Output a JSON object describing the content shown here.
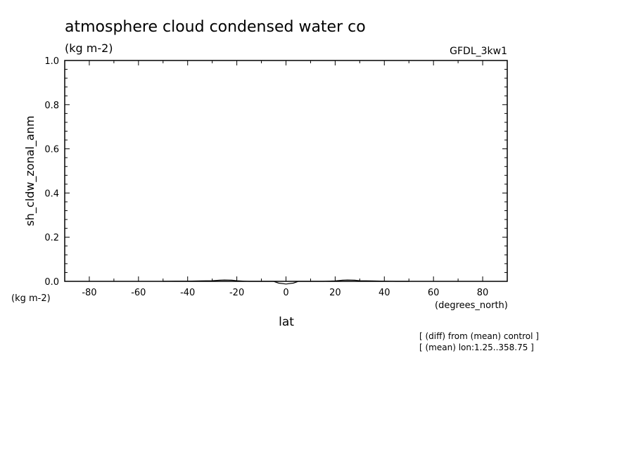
{
  "chart_data": {
    "type": "line",
    "title": "atmosphere cloud condensed water co",
    "subtitle": "(kg m-2)",
    "model_label": "GFDL_3kw1",
    "ylabel": "sh_cldw_zonal_anm",
    "y_units": "(kg m-2)",
    "xlabel": "lat",
    "x_units": "(degrees_north)",
    "xlim": [
      -90,
      90
    ],
    "ylim": [
      0.0,
      1.0
    ],
    "x_ticks": [
      -80,
      -60,
      -40,
      -20,
      0,
      20,
      40,
      60,
      80
    ],
    "x_tick_labels": [
      "-80",
      "-60",
      "-40",
      "-20",
      "0",
      "20",
      "40",
      "60",
      "80"
    ],
    "y_ticks": [
      0.0,
      0.2,
      0.4,
      0.6,
      0.8,
      1.0
    ],
    "y_tick_labels": [
      "0.0",
      "0.2",
      "0.4",
      "0.6",
      "0.8",
      "1.0"
    ],
    "grid": false,
    "series": [
      {
        "x": [
          -50,
          -45,
          -40,
          -35,
          -30,
          -27,
          -25,
          -22,
          -20,
          -17,
          -15,
          -10,
          -5,
          -3,
          0,
          3,
          5,
          8,
          10,
          15,
          20,
          23,
          25,
          28,
          30,
          35,
          40,
          45,
          50
        ],
        "y": [
          0.0,
          0.001,
          0.001,
          0.002,
          0.003,
          0.005,
          0.006,
          0.005,
          0.003,
          0.001,
          0.0,
          0.0,
          0.0,
          -0.008,
          -0.012,
          -0.008,
          0.0,
          0.0,
          0.0,
          0.0,
          0.002,
          0.005,
          0.006,
          0.005,
          0.003,
          0.002,
          0.001,
          0.0,
          0.0
        ]
      }
    ],
    "notes": [
      "[ (diff) from (mean) control ]",
      "[ (mean) lon:1.25..358.75 ]"
    ]
  }
}
